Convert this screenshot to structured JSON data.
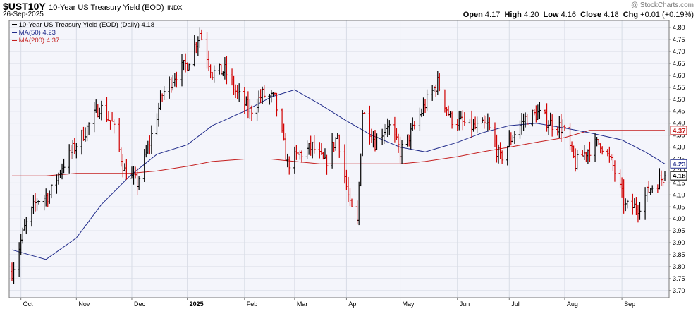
{
  "header": {
    "symbol": "$UST10Y",
    "name": "10-Year US Treasury Yield (EOD)",
    "exchange": "INDX",
    "date": "26-Sep-2025",
    "watermark": "@ StockCharts.com",
    "open_label": "Open",
    "open_value": "4.17",
    "high_label": "High",
    "high_value": "4.20",
    "low_label": "Low",
    "low_value": "4.16",
    "close_label": "Close",
    "close_value": "4.18",
    "chg_label": "Chg",
    "chg_value": "+0.01 (+0.19%)"
  },
  "legend": {
    "price": "10-Year US Treasury Yield (EOD) (Daily) 4.18",
    "ma50": "MA(50) 4.23",
    "ma200": "MA(200) 4.37"
  },
  "colors": {
    "up": "#000000",
    "down": "#d00000",
    "ma50": "#1f2a8a",
    "ma200": "#c41e1e",
    "grid": "#d8dce6",
    "plot_bg": "#f4f5fb",
    "frame": "#777777"
  },
  "chart_data": {
    "type": "ohlc",
    "ylim": [
      3.67,
      4.83
    ],
    "yticks": [
      "3.70",
      "3.75",
      "3.80",
      "3.85",
      "3.90",
      "3.95",
      "4.00",
      "4.05",
      "4.10",
      "4.15",
      "4.20",
      "4.25",
      "4.30",
      "4.35",
      "4.40",
      "4.45",
      "4.50",
      "4.55",
      "4.60",
      "4.65",
      "4.70",
      "4.75",
      "4.80"
    ],
    "xticks": [
      {
        "label": "Oct",
        "date": "2024-10-01",
        "bold": false
      },
      {
        "label": "Nov",
        "date": "2024-11-01",
        "bold": false
      },
      {
        "label": "Dec",
        "date": "2024-12-02",
        "bold": false
      },
      {
        "label": "2025",
        "date": "2025-01-02",
        "bold": true
      },
      {
        "label": "Feb",
        "date": "2025-02-03",
        "bold": false
      },
      {
        "label": "Mar",
        "date": "2025-03-03",
        "bold": false
      },
      {
        "label": "Apr",
        "date": "2025-04-01",
        "bold": false
      },
      {
        "label": "May",
        "date": "2025-05-01",
        "bold": false
      },
      {
        "label": "Jun",
        "date": "2025-06-02",
        "bold": false
      },
      {
        "label": "Jul",
        "date": "2025-07-01",
        "bold": false
      },
      {
        "label": "Aug",
        "date": "2025-08-01",
        "bold": false
      },
      {
        "label": "Sep",
        "date": "2025-09-02",
        "bold": false
      }
    ],
    "price_series": {
      "name": "10-Year US Treasury Yield (EOD) (Daily)",
      "dates": [
        "2024-09-26",
        "2024-10-03",
        "2024-10-10",
        "2024-10-17",
        "2024-10-24",
        "2024-10-31",
        "2024-11-07",
        "2024-11-14",
        "2024-11-21",
        "2024-11-28",
        "2024-12-05",
        "2024-12-12",
        "2024-12-19",
        "2024-12-26",
        "2025-01-02",
        "2025-01-09",
        "2025-01-16",
        "2025-01-23",
        "2025-01-30",
        "2025-02-06",
        "2025-02-13",
        "2025-02-20",
        "2025-02-27",
        "2025-03-06",
        "2025-03-13",
        "2025-03-20",
        "2025-03-27",
        "2025-04-03",
        "2025-04-07",
        "2025-04-10",
        "2025-04-17",
        "2025-04-24",
        "2025-05-01",
        "2025-05-08",
        "2025-05-15",
        "2025-05-22",
        "2025-05-29",
        "2025-06-05",
        "2025-06-12",
        "2025-06-19",
        "2025-06-26",
        "2025-07-03",
        "2025-07-10",
        "2025-07-17",
        "2025-07-24",
        "2025-07-31",
        "2025-08-07",
        "2025-08-14",
        "2025-08-21",
        "2025-08-28",
        "2025-09-04",
        "2025-09-11",
        "2025-09-18",
        "2025-09-26"
      ],
      "close": [
        3.78,
        3.96,
        4.08,
        4.1,
        4.22,
        4.3,
        4.38,
        4.47,
        4.4,
        4.2,
        4.15,
        4.32,
        4.52,
        4.6,
        4.65,
        4.78,
        4.61,
        4.62,
        4.52,
        4.45,
        4.52,
        4.5,
        4.23,
        4.27,
        4.3,
        4.23,
        4.35,
        4.05,
        3.98,
        4.45,
        4.32,
        4.4,
        4.28,
        4.37,
        4.48,
        4.57,
        4.42,
        4.4,
        4.38,
        4.39,
        4.25,
        4.35,
        4.42,
        4.44,
        4.4,
        4.38,
        4.23,
        4.29,
        4.32,
        4.22,
        4.05,
        4.05,
        4.13,
        4.18
      ]
    },
    "series": [
      {
        "name": "MA(50)",
        "dates": [
          "2024-09-26",
          "2024-10-15",
          "2024-11-01",
          "2024-11-15",
          "2024-12-01",
          "2024-12-16",
          "2025-01-02",
          "2025-01-16",
          "2025-02-03",
          "2025-02-18",
          "2025-03-03",
          "2025-03-17",
          "2025-04-01",
          "2025-04-15",
          "2025-05-01",
          "2025-05-15",
          "2025-06-02",
          "2025-06-16",
          "2025-07-01",
          "2025-07-16",
          "2025-08-01",
          "2025-08-15",
          "2025-09-02",
          "2025-09-15",
          "2025-09-26"
        ],
        "values": [
          3.87,
          3.83,
          3.92,
          4.06,
          4.18,
          4.27,
          4.31,
          4.39,
          4.45,
          4.51,
          4.54,
          4.48,
          4.41,
          4.35,
          4.3,
          4.28,
          4.32,
          4.36,
          4.39,
          4.4,
          4.38,
          4.36,
          4.33,
          4.28,
          4.23
        ]
      },
      {
        "name": "MA(200)",
        "dates": [
          "2024-09-26",
          "2024-10-15",
          "2024-11-01",
          "2024-11-15",
          "2024-12-01",
          "2024-12-16",
          "2025-01-02",
          "2025-01-16",
          "2025-02-03",
          "2025-02-18",
          "2025-03-03",
          "2025-03-17",
          "2025-04-01",
          "2025-04-15",
          "2025-05-01",
          "2025-05-15",
          "2025-06-02",
          "2025-06-16",
          "2025-07-01",
          "2025-07-16",
          "2025-08-01",
          "2025-08-15",
          "2025-09-02",
          "2025-09-15",
          "2025-09-26"
        ],
        "values": [
          4.18,
          4.18,
          4.19,
          4.19,
          4.19,
          4.2,
          4.22,
          4.24,
          4.25,
          4.25,
          4.24,
          4.23,
          4.23,
          4.23,
          4.23,
          4.24,
          4.26,
          4.28,
          4.3,
          4.32,
          4.34,
          4.37,
          4.37,
          4.37,
          4.37
        ]
      }
    ],
    "last_values": {
      "close": "4.18",
      "ma50": "4.23",
      "ma200": "4.37"
    },
    "grid": true,
    "legend_position": "top-left"
  }
}
